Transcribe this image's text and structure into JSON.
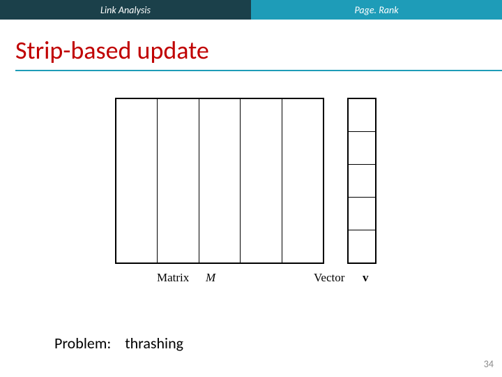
{
  "tabs": {
    "left": {
      "label": "Link Analysis",
      "bg": "#1b404a",
      "fg": "#ffffff"
    },
    "right": {
      "label": "Page. Rank",
      "bg": "#1e9cb8",
      "fg": "#ffffff"
    }
  },
  "title": {
    "text": "Strip-based update",
    "color": "#c00000",
    "rule_color": "#1e9cb8"
  },
  "diagram": {
    "matrix": {
      "strips": 5,
      "border_color": "#000000"
    },
    "vector": {
      "cells": 5,
      "border_color": "#000000"
    },
    "captions": {
      "matrix_word": "Matrix",
      "matrix_sym": "M",
      "vector_word": "Vector",
      "vector_sym": "v"
    }
  },
  "problem": {
    "label": "Problem:",
    "text": "thrashing"
  },
  "page_number": "34"
}
